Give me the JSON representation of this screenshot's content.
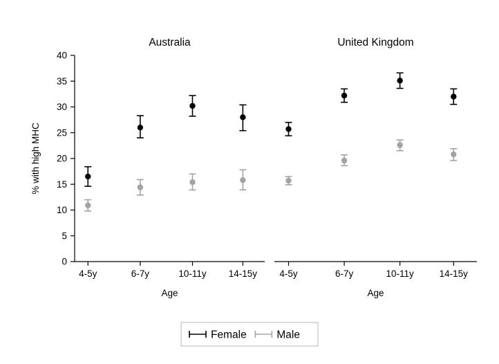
{
  "chart_data": {
    "type": "scatter",
    "title": "",
    "ylabel": "% with high MHC",
    "xlabel": "Age",
    "ylim": [
      0,
      40
    ],
    "yticks": [
      0,
      5,
      10,
      15,
      20,
      25,
      30,
      35,
      40
    ],
    "categories": [
      "4-5y",
      "6-7y",
      "10-11y",
      "14-15y"
    ],
    "grid": false,
    "legend_position": "bottom",
    "colors": {
      "female": "#000000",
      "male": "#a3a3a3"
    },
    "panels": [
      {
        "title": "Australia",
        "series": [
          {
            "name": "Female",
            "color": "#000000",
            "values": [
              16.5,
              26.0,
              30.2,
              28.0
            ],
            "ci_low": [
              14.6,
              24.0,
              28.2,
              25.4
            ],
            "ci_high": [
              18.4,
              28.3,
              32.2,
              30.4
            ]
          },
          {
            "name": "Male",
            "color": "#a3a3a3",
            "values": [
              10.9,
              14.4,
              15.4,
              15.8
            ],
            "ci_low": [
              9.8,
              12.9,
              13.9,
              13.9
            ],
            "ci_high": [
              12.0,
              15.9,
              17.0,
              17.8
            ]
          }
        ]
      },
      {
        "title": "United Kingdom",
        "series": [
          {
            "name": "Female",
            "color": "#000000",
            "values": [
              25.7,
              32.2,
              35.1,
              32.0
            ],
            "ci_low": [
              24.4,
              30.9,
              33.6,
              30.5
            ],
            "ci_high": [
              27.0,
              33.5,
              36.6,
              33.5
            ]
          },
          {
            "name": "Male",
            "color": "#a3a3a3",
            "values": [
              15.7,
              19.6,
              22.6,
              20.8
            ],
            "ci_low": [
              14.9,
              18.6,
              21.5,
              19.6
            ],
            "ci_high": [
              16.5,
              20.7,
              23.6,
              21.9
            ]
          }
        ]
      }
    ],
    "legend": {
      "entries": [
        {
          "label": "Female",
          "color": "#000000"
        },
        {
          "label": "Male",
          "color": "#a3a3a3"
        }
      ]
    }
  }
}
